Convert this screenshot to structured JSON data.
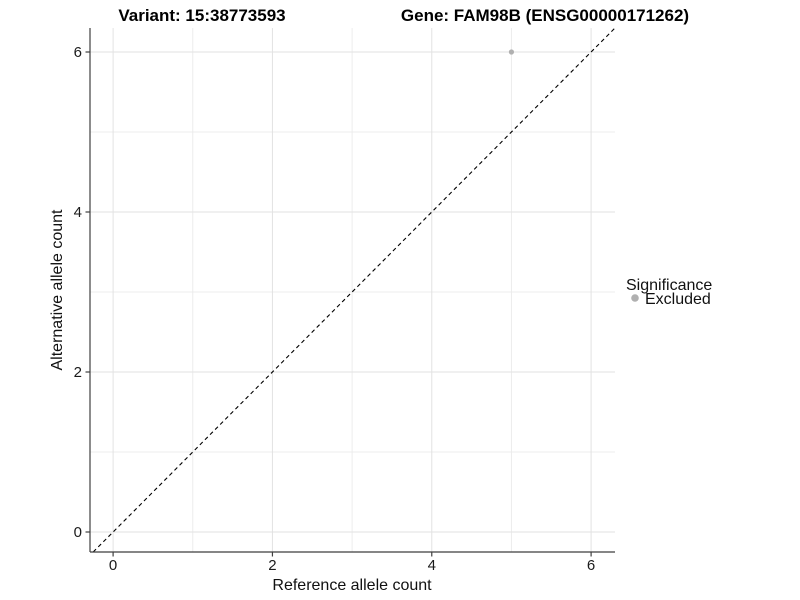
{
  "titles": {
    "variant": "Variant: 15:38773593",
    "gene": "Gene: FAM98B (ENSG00000171262)"
  },
  "chart_data": {
    "type": "scatter",
    "xlabel": "Reference allele count",
    "ylabel": "Alternative allele count",
    "xlim": [
      -0.29,
      6.3
    ],
    "ylim": [
      -0.25,
      6.3
    ],
    "major_ticks": [
      0,
      2,
      4,
      6
    ],
    "tick_labels": [
      "0",
      "2",
      "4",
      "6"
    ],
    "minor_gridlines": [
      1,
      3,
      5
    ],
    "grid": true,
    "points": [
      {
        "x": 5,
        "y": 6,
        "series": "Excluded"
      }
    ],
    "identity_line": {
      "slope": 1,
      "intercept": 0,
      "style": "dashed",
      "color": "#000000"
    },
    "legend": {
      "title": "Significance",
      "position": "right",
      "entries": [
        {
          "label": "Excluded",
          "color": "#b0b0b0"
        }
      ]
    }
  },
  "colors": {
    "panel_background": "#ffffff",
    "grid_major": "#e2e2e2",
    "grid_minor": "#ececec",
    "axis_line": "#3f3f3f",
    "point": "#b0b0b0"
  }
}
